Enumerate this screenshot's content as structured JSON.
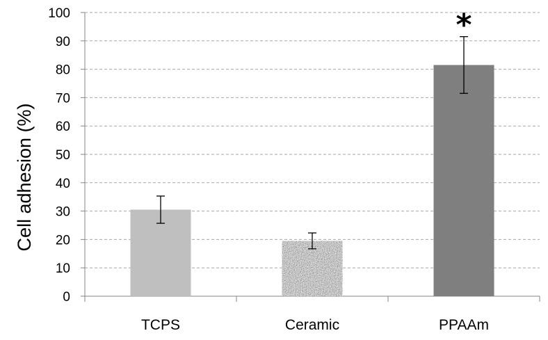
{
  "chart_data": {
    "type": "bar",
    "title": "",
    "xlabel": "",
    "ylabel": "Cell adhesion  (%)",
    "ylim": [
      0,
      100
    ],
    "yticks": [
      0,
      10,
      20,
      30,
      40,
      50,
      60,
      70,
      80,
      90,
      100
    ],
    "grid": true,
    "legend": "none",
    "categories": [
      "TCPS",
      "Ceramic",
      "PPAAm"
    ],
    "values": [
      30.5,
      19.5,
      81.5
    ],
    "error": [
      4.8,
      2.8,
      10
    ],
    "colors": [
      "#bfbfbf",
      "#9a9a9a",
      "#7f7f7f"
    ],
    "patterns": [
      "solid",
      "granite",
      "solid"
    ],
    "annotations": [
      {
        "category": "PPAAm",
        "text": "*"
      }
    ]
  }
}
